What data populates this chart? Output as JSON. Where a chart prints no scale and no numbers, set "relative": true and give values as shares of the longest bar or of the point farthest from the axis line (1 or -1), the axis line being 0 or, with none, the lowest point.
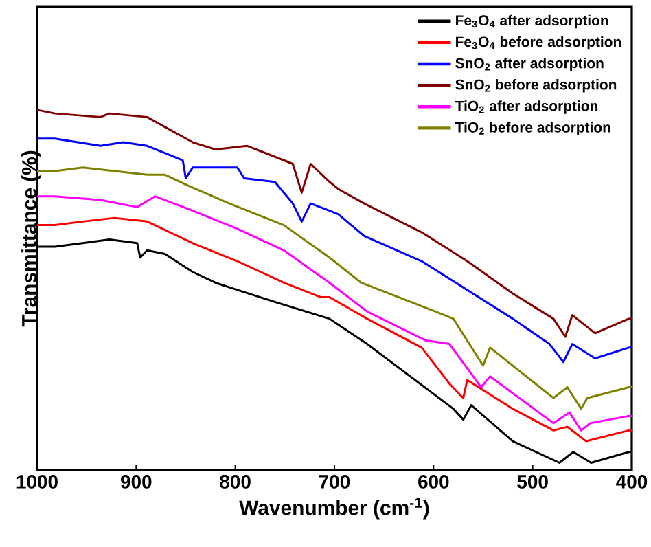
{
  "chart_data": {
    "type": "line",
    "relative": true,
    "xlabel": "Wavenumber (cm$^{-1}$)",
    "ylabel": "Transmittance (%)",
    "xlim": [
      1000,
      400
    ],
    "xticks": [
      1000,
      900,
      800,
      700,
      600,
      500,
      400
    ],
    "legend": "top right",
    "series": [
      {
        "name": "Fe$_{3}$O$_{4}$ after adsorption",
        "color": "#000000",
        "x": [
          1000,
          982,
          954,
          927,
          899,
          896,
          889,
          871,
          843,
          820,
          798,
          764,
          705,
          667,
          580,
          570,
          562,
          520,
          473,
          459,
          441,
          403,
          400
        ],
        "values": [
          0.62,
          0.62,
          0.63,
          0.64,
          0.63,
          0.59,
          0.61,
          0.6,
          0.55,
          0.52,
          0.5,
          0.47,
          0.42,
          0.35,
          0.17,
          0.14,
          0.18,
          0.08,
          0.02,
          0.05,
          0.02,
          0.05,
          0.05
        ]
      },
      {
        "name": "Fe$_{3}$O$_{4}$ before adsorption",
        "color": "#ff0000",
        "x": [
          1000,
          982,
          954,
          922,
          889,
          843,
          798,
          751,
          714,
          705,
          667,
          612,
          584,
          570,
          566,
          520,
          479,
          465,
          446,
          403,
          400
        ],
        "values": [
          0.68,
          0.68,
          0.69,
          0.7,
          0.69,
          0.63,
          0.58,
          0.52,
          0.48,
          0.48,
          0.42,
          0.34,
          0.24,
          0.2,
          0.25,
          0.17,
          0.11,
          0.12,
          0.08,
          0.11,
          0.11
        ]
      },
      {
        "name": "SnO$_{2}$ after adsorption",
        "color": "#0000ff",
        "x": [
          1000,
          982,
          936,
          913,
          889,
          853,
          850,
          843,
          798,
          791,
          760,
          742,
          733,
          724,
          705,
          696,
          670,
          612,
          566,
          520,
          483,
          469,
          460,
          437,
          403,
          400
        ],
        "values": [
          0.92,
          0.92,
          0.9,
          0.91,
          0.9,
          0.86,
          0.81,
          0.84,
          0.84,
          0.81,
          0.8,
          0.74,
          0.69,
          0.74,
          0.72,
          0.71,
          0.65,
          0.58,
          0.5,
          0.42,
          0.35,
          0.3,
          0.35,
          0.31,
          0.34,
          0.34
        ]
      },
      {
        "name": "SnO$_{2}$ before adsorption",
        "color": "#800000",
        "x": [
          1000,
          982,
          936,
          927,
          889,
          843,
          820,
          788,
          751,
          742,
          733,
          724,
          705,
          696,
          670,
          612,
          566,
          520,
          479,
          467,
          460,
          437,
          403,
          400
        ],
        "values": [
          1.0,
          0.99,
          0.98,
          0.99,
          0.98,
          0.91,
          0.89,
          0.9,
          0.86,
          0.85,
          0.77,
          0.85,
          0.8,
          0.78,
          0.74,
          0.66,
          0.58,
          0.49,
          0.42,
          0.37,
          0.43,
          0.38,
          0.42,
          0.42
        ]
      },
      {
        "name": "TiO$_{2}$ after adsorption",
        "color": "#ff00ff",
        "x": [
          1000,
          982,
          936,
          899,
          881,
          843,
          798,
          751,
          705,
          667,
          608,
          584,
          552,
          543,
          479,
          463,
          451,
          442,
          403,
          400
        ],
        "values": [
          0.76,
          0.76,
          0.75,
          0.73,
          0.76,
          0.72,
          0.67,
          0.61,
          0.52,
          0.44,
          0.36,
          0.35,
          0.23,
          0.26,
          0.13,
          0.16,
          0.11,
          0.13,
          0.15,
          0.15
        ]
      },
      {
        "name": "TiO$_{2}$ before adsorption",
        "color": "#808000",
        "x": [
          1000,
          982,
          954,
          889,
          871,
          848,
          806,
          751,
          705,
          673,
          598,
          580,
          550,
          543,
          479,
          465,
          451,
          445,
          403,
          400
        ],
        "values": [
          0.83,
          0.83,
          0.84,
          0.82,
          0.82,
          0.79,
          0.74,
          0.68,
          0.59,
          0.52,
          0.44,
          0.42,
          0.29,
          0.34,
          0.2,
          0.23,
          0.17,
          0.2,
          0.23,
          0.23
        ]
      }
    ]
  }
}
